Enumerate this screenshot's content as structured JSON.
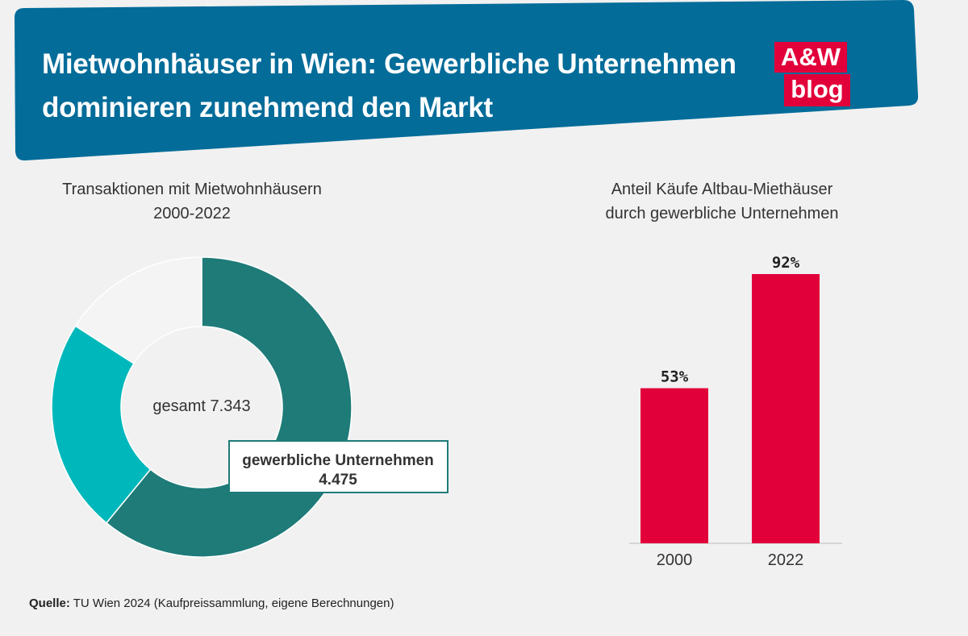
{
  "header": {
    "title_line_1": "Mietwohnhäuser in Wien: Gewerbliche Unternehmen",
    "title_line_2": "dominieren zunehmend den Markt",
    "banner_color": "#036c99",
    "logo_top": "A&W",
    "logo_bottom": "blog",
    "logo_color": "#e2003a"
  },
  "chart_data": [
    {
      "type": "pie",
      "title_line_1": "Transaktionen mit Mietwohnhäusern",
      "title_line_2": "2000-2022",
      "center_label": "gesamt 7.343",
      "total": 7343,
      "slices": [
        {
          "name": "gewerbliche Unternehmen",
          "value": 4475,
          "color": "#1e7b78"
        },
        {
          "name": "",
          "value": 1700,
          "color": "#00b8bb"
        },
        {
          "name": "",
          "value": 1168,
          "color": "#f4f4f4"
        }
      ],
      "callout_name": "gewerbliche Unternehmen",
      "callout_value": "4.475"
    },
    {
      "type": "bar",
      "title_line_1": "Anteil Käufe Altbau-Miethäuser",
      "title_line_2": "durch gewerbliche Unternehmen",
      "categories": [
        "2000",
        "2022"
      ],
      "values": [
        53,
        92
      ],
      "labels": [
        "53%",
        "92%"
      ],
      "ylim": [
        0,
        100
      ],
      "color": "#e2003a"
    }
  ],
  "source": {
    "label": "Quelle:",
    "text": " TU Wien 2024 (Kaufpreissammlung, eigene Berechnungen)"
  }
}
